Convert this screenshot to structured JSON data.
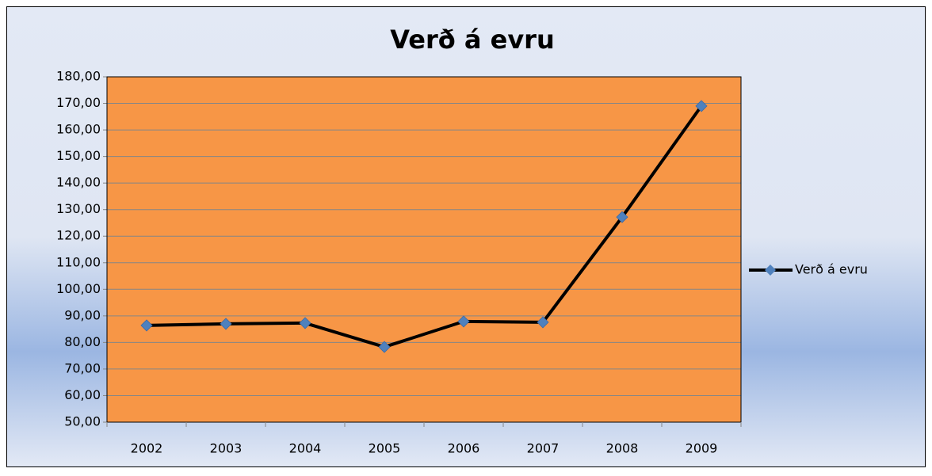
{
  "chart_data": {
    "type": "line",
    "title": "Verð á evru",
    "categories": [
      "2002",
      "2003",
      "2004",
      "2005",
      "2006",
      "2007",
      "2008",
      "2009"
    ],
    "series": [
      {
        "name": "Verð á evru",
        "color": "#000000",
        "marker_color": "#4f81bd",
        "values": [
          86.4,
          87.0,
          87.3,
          78.3,
          87.9,
          87.6,
          127.2,
          169.0
        ]
      }
    ],
    "ylim": [
      50,
      180
    ],
    "yticks": [
      {
        "value": 50,
        "label": "50,00"
      },
      {
        "value": 60,
        "label": "60,00"
      },
      {
        "value": 70,
        "label": "70,00"
      },
      {
        "value": 80,
        "label": "80,00"
      },
      {
        "value": 90,
        "label": "90,00"
      },
      {
        "value": 100,
        "label": "100,00"
      },
      {
        "value": 110,
        "label": "110,00"
      },
      {
        "value": 120,
        "label": "120,00"
      },
      {
        "value": 130,
        "label": "130,00"
      },
      {
        "value": 140,
        "label": "140,00"
      },
      {
        "value": 150,
        "label": "150,00"
      },
      {
        "value": 160,
        "label": "160,00"
      },
      {
        "value": 170,
        "label": "170,00"
      },
      {
        "value": 180,
        "label": "180,00"
      }
    ],
    "grid": true,
    "plot_background": "#f79646",
    "legend": "right"
  }
}
